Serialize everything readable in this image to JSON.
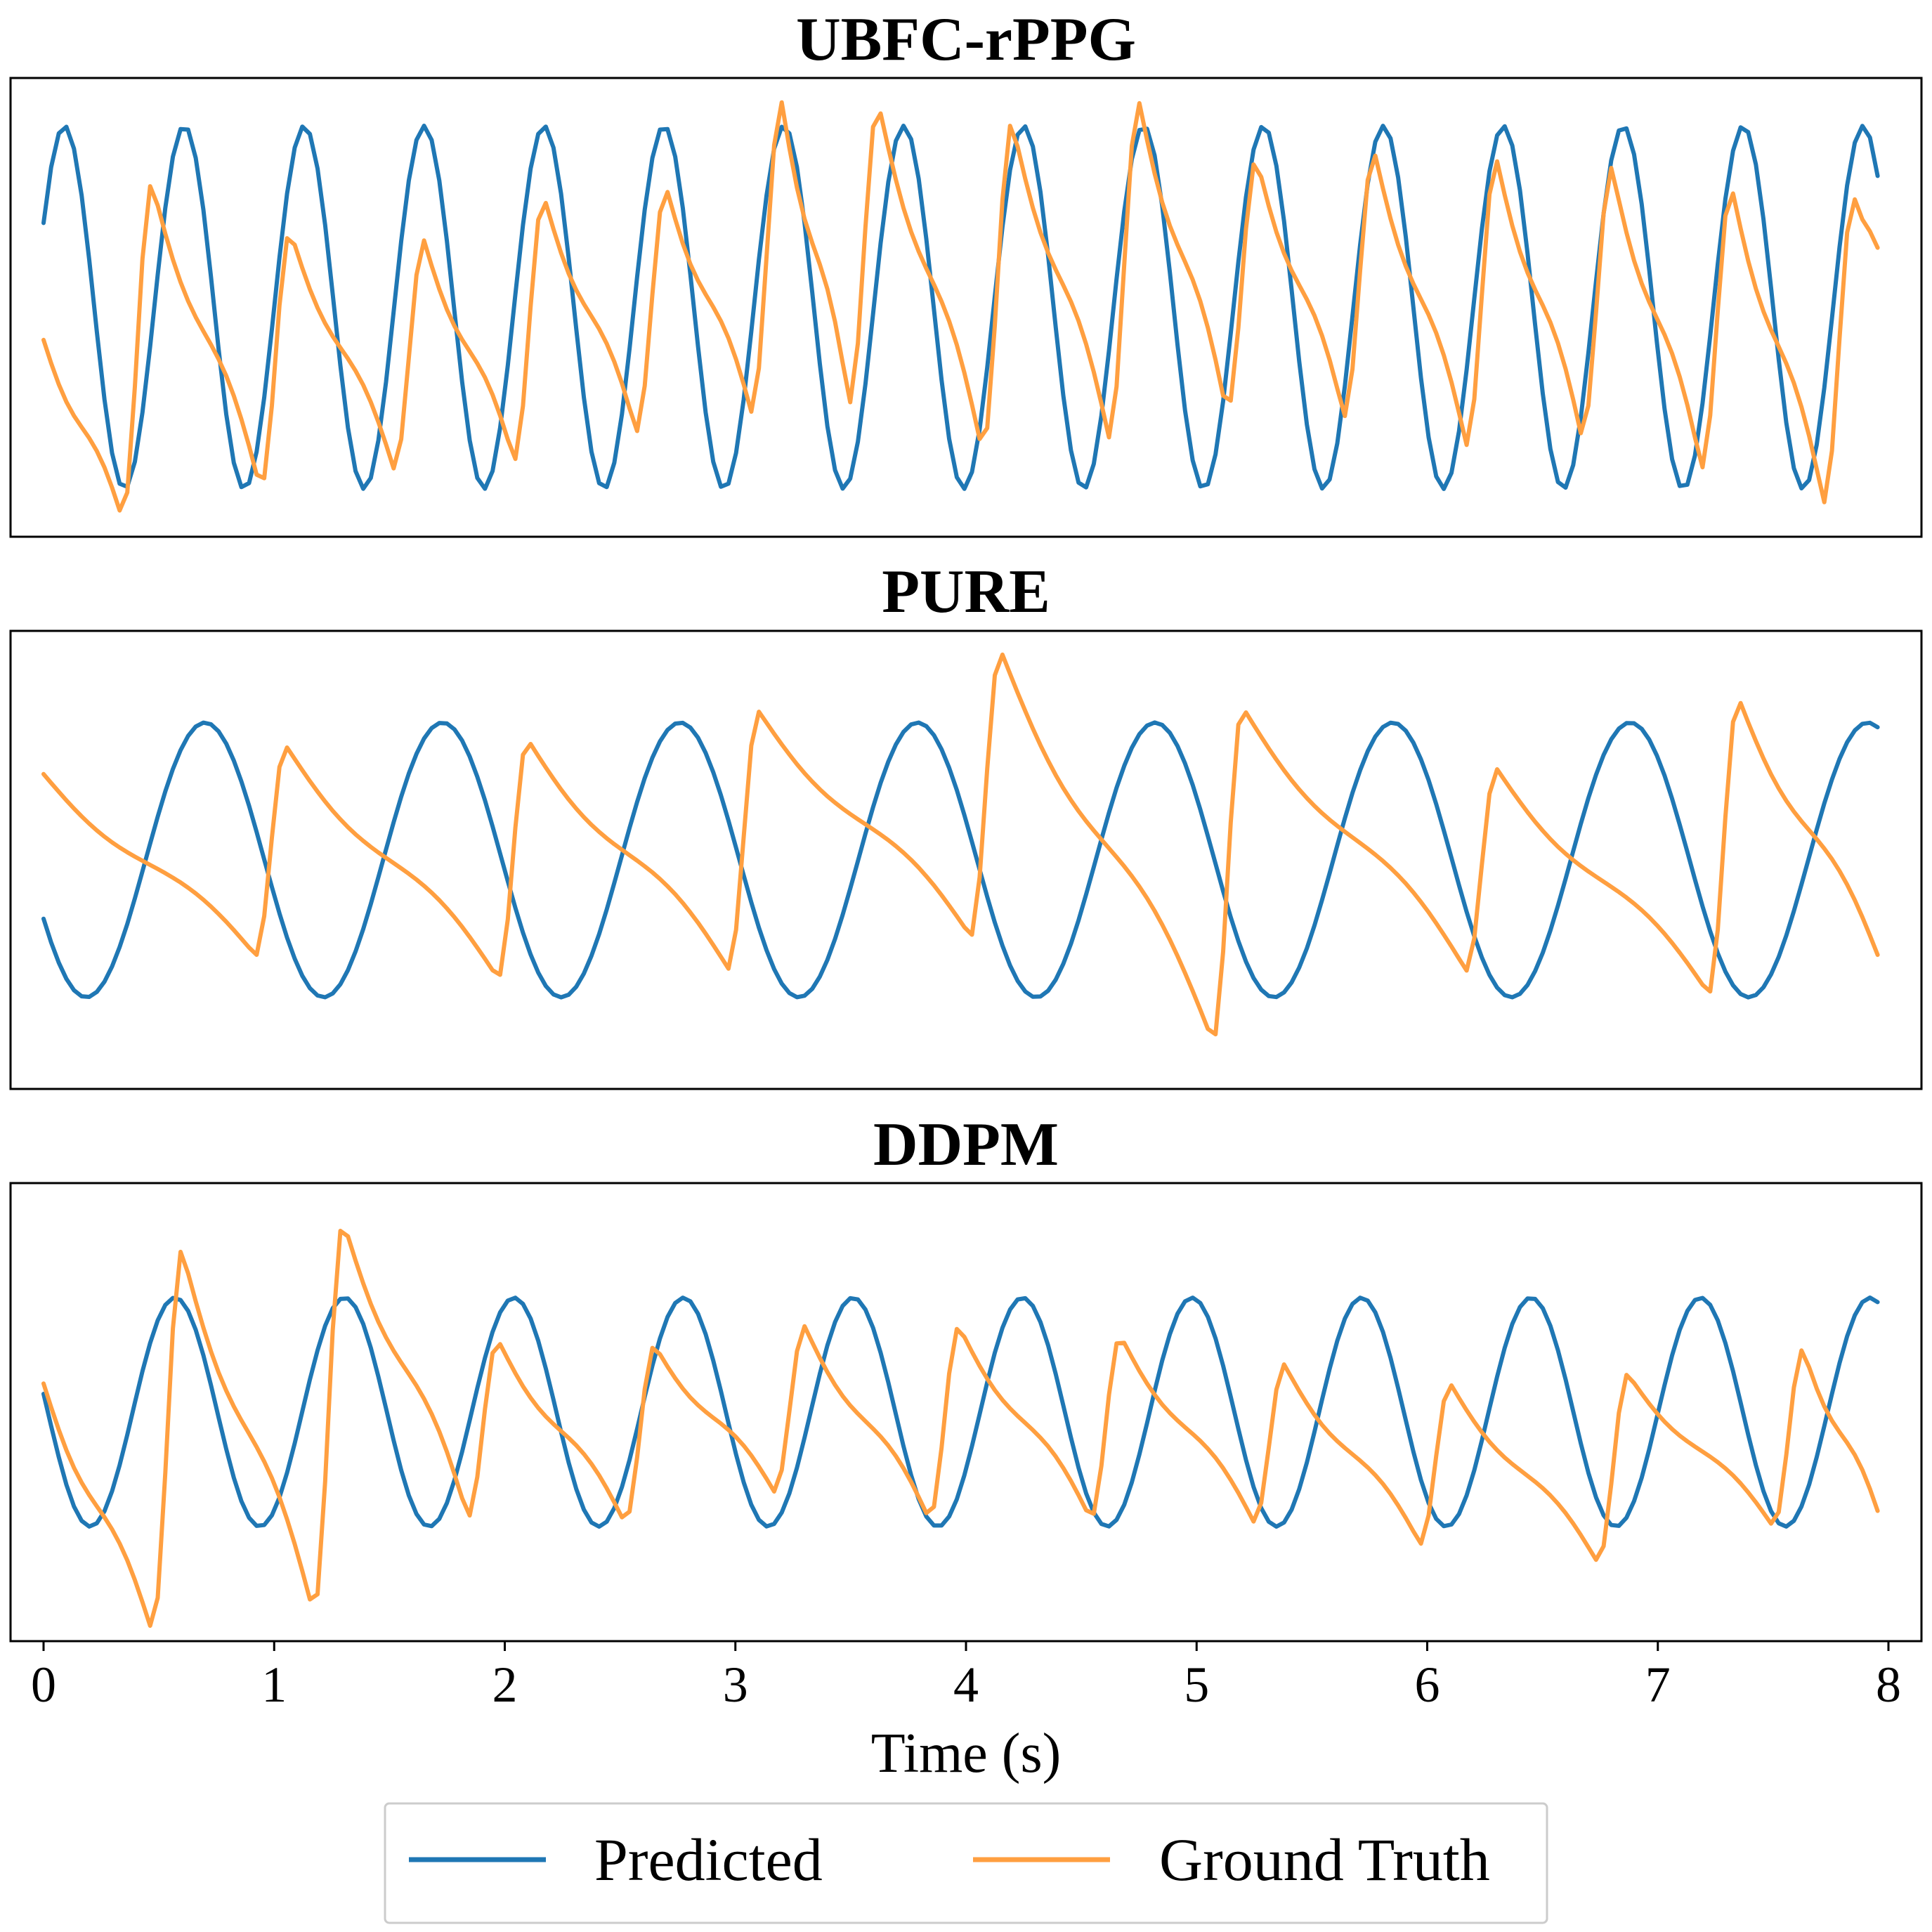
{
  "chart_data": {
    "type": "line",
    "xlabel": "Time (s)",
    "xlim": [
      0,
      8
    ],
    "x_ticks": [
      "0",
      "1",
      "2",
      "3",
      "4",
      "5",
      "6",
      "7",
      "8"
    ],
    "legend": {
      "placement": "bottom-center",
      "entries": [
        {
          "name": "Predicted",
          "color": "#1f77b4"
        },
        {
          "name": "Ground Truth",
          "color": "#ff9f40"
        }
      ]
    },
    "panels": [
      {
        "title": "UBFC-rPPG",
        "ylim": [
          -1.2,
          1.2
        ],
        "series": [
          {
            "name": "Predicted",
            "color": "#1f77b4",
            "period": 0.52,
            "phase": 0.09,
            "amp": 0.95,
            "offset": 0.0
          },
          {
            "name": "Ground Truth",
            "color": "#ff9f40",
            "peaks": [
              0.47,
              1.07,
              1.65,
              2.17,
              2.7,
              3.2,
              3.62,
              4.2,
              4.75,
              5.26,
              5.77,
              6.3,
              6.8,
              7.32,
              7.85
            ],
            "peak_values": [
              0.65,
              0.4,
              0.35,
              0.58,
              0.63,
              1.08,
              1.07,
              0.97,
              1.08,
              0.78,
              0.82,
              0.78,
              0.73,
              0.63,
              0.58
            ],
            "trough_values": [
              -1.1,
              -0.95,
              -0.85,
              -0.8,
              -0.65,
              -0.55,
              -0.5,
              -0.75,
              -0.68,
              -0.55,
              -0.57,
              -0.72,
              -0.68,
              -0.84,
              -1.02
            ],
            "start": -0.17,
            "end": 0.25
          }
        ]
      },
      {
        "title": "PURE",
        "ylim": [
          -1.2,
          1.2
        ],
        "series": [
          {
            "name": "Predicted",
            "color": "#1f77b4",
            "period": 1.03,
            "phase": 0.7,
            "amp": 0.72,
            "offset": -0.0
          },
          {
            "name": "Ground Truth",
            "color": "#ff9f40",
            "peaks": [
              1.05,
              2.1,
              3.1,
              4.15,
              5.2,
              6.3,
              7.35
            ],
            "peak_values": [
              0.6,
              0.63,
              0.78,
              1.1,
              0.8,
              0.48,
              0.85
            ],
            "trough_values": [
              -0.5,
              -0.62,
              -0.57,
              -0.4,
              -0.95,
              -0.58,
              -0.7,
              -0.55
            ],
            "start": 0.45,
            "end": -0.55
          }
        ]
      },
      {
        "title": "DDPM",
        "ylim": [
          -1.2,
          1.2
        ],
        "series": [
          {
            "name": "Predicted",
            "color": "#1f77b4",
            "period": 0.735,
            "phase": 0.57,
            "amp": 0.6,
            "offset": 0.0
          },
          {
            "name": "Ground Truth",
            "color": "#ff9f40",
            "peaks": [
              0.6,
              1.3,
              1.97,
              2.65,
              3.3,
              3.97,
              4.67,
              5.38,
              6.1,
              6.87,
              7.63
            ],
            "peak_values": [
              0.85,
              1.0,
              0.38,
              0.35,
              0.45,
              0.45,
              0.4,
              0.25,
              0.15,
              0.2,
              0.33
            ],
            "trough_values": [
              -1.15,
              -1.05,
              -0.55,
              -0.58,
              -0.42,
              -0.56,
              -0.56,
              -0.58,
              -0.69,
              -0.79,
              -0.6
            ],
            "start": 0.15,
            "end": -0.58
          }
        ]
      }
    ]
  }
}
